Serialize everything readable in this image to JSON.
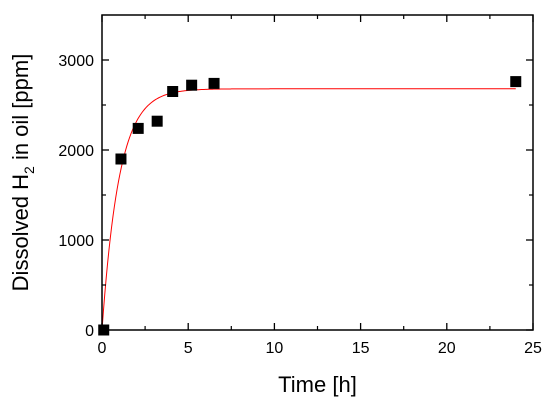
{
  "chart_data": {
    "type": "scatter",
    "xlabel": "Time [h]",
    "ylabel": {
      "prefix": "Dissolved H",
      "subscript": "2",
      "suffix": " in oil [ppm]"
    },
    "xlim": [
      0,
      25
    ],
    "ylim": [
      0,
      3500
    ],
    "x_ticks": [
      0,
      5,
      10,
      15,
      20,
      25
    ],
    "y_ticks": [
      0,
      1000,
      2000,
      3000
    ],
    "x_tick_labels": [
      "0",
      "5",
      "10",
      "15",
      "20",
      "25"
    ],
    "y_tick_labels": [
      "0",
      "1000",
      "2000",
      "3000"
    ],
    "grid": false,
    "series": [
      {
        "kind": "scatter",
        "marker": "square",
        "color": "#000000",
        "points": [
          {
            "x": 0.1,
            "y": 0
          },
          {
            "x": 1.1,
            "y": 1900
          },
          {
            "x": 2.1,
            "y": 2240
          },
          {
            "x": 3.2,
            "y": 2320
          },
          {
            "x": 4.1,
            "y": 2650
          },
          {
            "x": 5.2,
            "y": 2720
          },
          {
            "x": 6.5,
            "y": 2740
          },
          {
            "x": 24.0,
            "y": 2760
          }
        ]
      },
      {
        "kind": "fit-line",
        "color": "#ff0000",
        "model": "exponential-saturation",
        "params": {
          "a": 2680,
          "k": 1.0
        },
        "x_range": [
          0,
          24
        ]
      }
    ]
  }
}
